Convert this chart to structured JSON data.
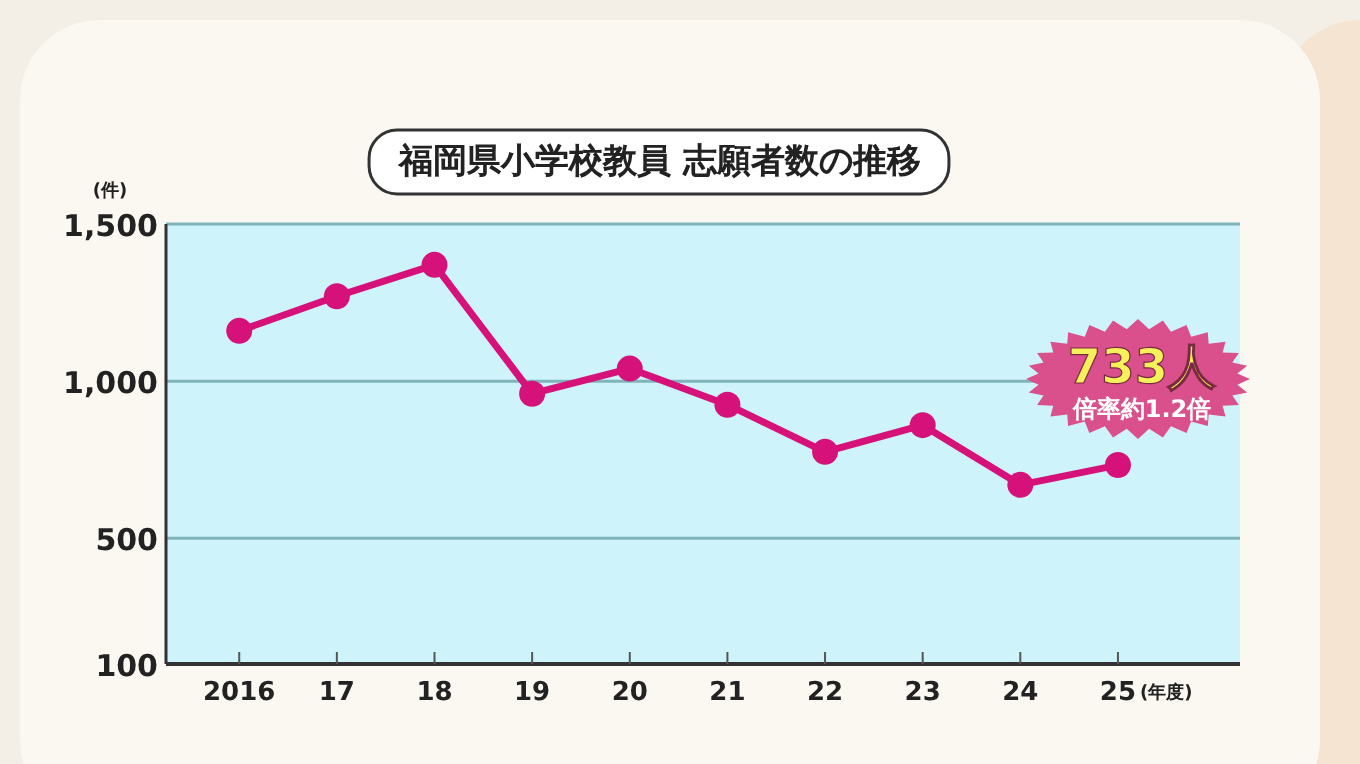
{
  "chart_data": {
    "type": "line",
    "title": "福岡県小学校教員 志願者数の推移",
    "ylabel": "(件)",
    "xlabel": "(年度)",
    "categories": [
      "2016",
      "17",
      "18",
      "19",
      "20",
      "21",
      "22",
      "23",
      "24",
      "25"
    ],
    "series": [
      {
        "color": "#d6127a",
        "values": [
          1160,
          1270,
          1370,
          960,
          1040,
          925,
          775,
          860,
          670,
          733
        ]
      }
    ],
    "ylim": [
      100,
      1500
    ],
    "yticks": [
      {
        "value": 100,
        "label": "100"
      },
      {
        "value": 500,
        "label": "500"
      },
      {
        "value": 1000,
        "label": "1,000"
      },
      {
        "value": 1500,
        "label": "1,500"
      }
    ],
    "grid": "y",
    "marker": "circle",
    "line_style": "solid",
    "annotations": [
      {
        "text": "733人",
        "x": "25",
        "y": 733
      },
      {
        "text": "倍率約1.2倍",
        "x": "25",
        "y": 733
      }
    ]
  }
}
